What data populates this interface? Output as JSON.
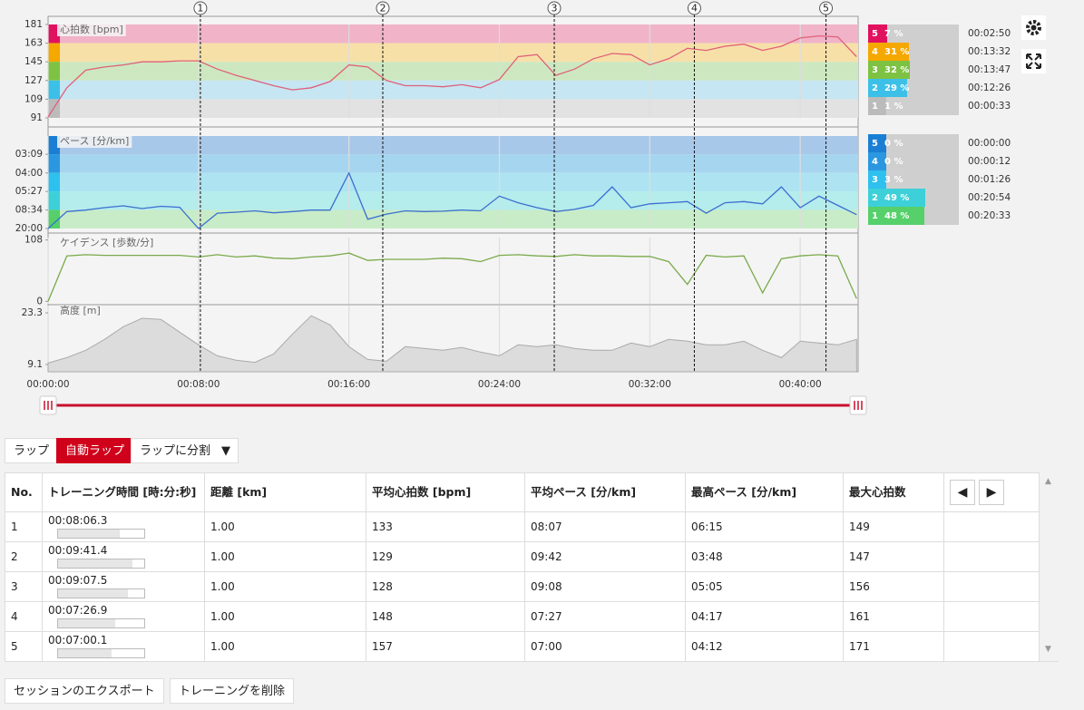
{
  "charts": {
    "minutes": [
      0,
      1,
      2,
      3,
      4,
      5,
      6,
      7,
      8,
      9,
      10,
      11,
      12,
      13,
      14,
      15,
      16,
      17,
      18,
      19,
      20,
      21,
      22,
      23,
      24,
      25,
      26,
      27,
      28,
      29,
      30,
      31,
      32,
      33,
      34,
      35,
      36,
      37,
      38,
      39,
      40,
      41,
      42,
      43
    ],
    "xlim": [
      0,
      43.08
    ],
    "xticks": [
      {
        "value": 0,
        "label": "00:00:00"
      },
      {
        "value": 8,
        "label": "00:08:00"
      },
      {
        "value": 16,
        "label": "00:16:00"
      },
      {
        "value": 24,
        "label": "00:24:00"
      },
      {
        "value": 32,
        "label": "00:32:00"
      },
      {
        "value": 40,
        "label": "00:40:00"
      }
    ],
    "laps": [
      {
        "label": "1",
        "minute": 8.1
      },
      {
        "label": "2",
        "minute": 17.8
      },
      {
        "label": "3",
        "minute": 26.92
      },
      {
        "label": "4",
        "minute": 34.37
      },
      {
        "label": "5",
        "minute": 41.37
      }
    ],
    "heart_rate": {
      "title": "心拍数 [bpm]",
      "color": "#e0607a",
      "ylim": [
        91,
        181
      ],
      "yticks": [
        181,
        163,
        145,
        127,
        109,
        91
      ],
      "zone_colors": [
        "#f0b3c8",
        "#f7e0a8",
        "#cde8c0",
        "#c5e6f2",
        "#e2e2e2"
      ],
      "strip_colors": [
        "#e0115f",
        "#f5a800",
        "#7dc242",
        "#3cc0e8",
        "#bbbbbb"
      ],
      "values": [
        92,
        120,
        137,
        140,
        142,
        145,
        145,
        146,
        146,
        138,
        132,
        127,
        122,
        118,
        120,
        126,
        142,
        140,
        127,
        122,
        122,
        121,
        123,
        120,
        128,
        150,
        152,
        132,
        138,
        148,
        153,
        152,
        142,
        148,
        158,
        156,
        160,
        162,
        156,
        160,
        168,
        170,
        169,
        150
      ]
    },
    "pace": {
      "title": "ペース [分/km]",
      "color": "#3a6fd0",
      "ylim": [
        20,
        2.61
      ],
      "yticks": [
        {
          "value": 3.15,
          "label": "03:09"
        },
        {
          "value": 4,
          "label": "04:00"
        },
        {
          "value": 5.45,
          "label": "05:27"
        },
        {
          "value": 8.567,
          "label": "08:34"
        },
        {
          "value": 20,
          "label": "20:00"
        }
      ],
      "zone_colors": [
        "#a8c8ea",
        "#a6d5ef",
        "#aee4f2",
        "#b5ecec",
        "#c8ecc8"
      ],
      "strip_colors": [
        "#1a7fd4",
        "#2a97e0",
        "#2ec0ee",
        "#3dd0d8",
        "#55d06a"
      ],
      "values": [
        20,
        9.0,
        8.6,
        8.0,
        7.6,
        8.2,
        7.7,
        7.9,
        20,
        9.5,
        9.2,
        8.8,
        9.4,
        9.0,
        8.6,
        8.6,
        4.0,
        12,
        9.8,
        8.8,
        9.0,
        8.9,
        8.6,
        8.8,
        6.0,
        7.0,
        8.0,
        9.0,
        8.4,
        7.5,
        5.0,
        8.0,
        7.2,
        7.0,
        6.8,
        9.5,
        7.0,
        6.8,
        7.2,
        5.0,
        8.0,
        6.0,
        7.5,
        10
      ]
    },
    "cadence": {
      "title": "ケイデンス [歩数/分]",
      "color": "#7aaa4a",
      "ylim": [
        -4.2,
        112.2
      ],
      "yticks": [
        108,
        0
      ],
      "values": [
        0,
        80,
        82,
        81,
        81,
        81,
        81,
        81,
        78,
        82,
        78,
        80,
        76,
        75,
        78,
        80,
        85,
        72,
        74,
        74,
        74,
        76,
        75,
        70,
        81,
        82,
        80,
        79,
        82,
        80,
        80,
        79,
        79,
        70,
        30,
        81,
        78,
        80,
        15,
        75,
        80,
        82,
        80,
        5
      ]
    },
    "altitude": {
      "title": "高度 [m]",
      "color": "#aaaaaa",
      "fill": "#dcdcdc",
      "ylim": [
        7.1,
        25.3
      ],
      "yticks": [
        23.3,
        9.1
      ],
      "values": [
        9.5,
        11,
        13,
        16,
        19.5,
        21.8,
        21.5,
        18,
        14.5,
        11.5,
        10.3,
        9.7,
        12,
        17.5,
        22.5,
        20,
        14,
        10.5,
        10,
        14,
        13.5,
        13,
        13.8,
        12.5,
        11.5,
        14.5,
        14,
        14.5,
        13.5,
        13,
        13,
        15,
        14,
        16,
        15.5,
        14.5,
        14.5,
        15.5,
        13,
        11,
        15.5,
        15,
        14.5,
        16
      ]
    },
    "hr_zones": [
      {
        "zone": "5",
        "value": 7,
        "label": "7 %",
        "time": "00:02:50"
      },
      {
        "zone": "4",
        "value": 31,
        "label": "31 %",
        "time": "00:13:32"
      },
      {
        "zone": "3",
        "value": 32,
        "label": "32 %",
        "time": "00:13:47"
      },
      {
        "zone": "2",
        "value": 29,
        "label": "29 %",
        "time": "00:12:26"
      },
      {
        "zone": "1",
        "value": 1,
        "label": "1 %",
        "time": "00:00:33"
      }
    ],
    "pace_zones": [
      {
        "zone": "5",
        "value": 0,
        "label": "0 %",
        "time": "00:00:00"
      },
      {
        "zone": "4",
        "value": 0,
        "label": "0 %",
        "time": "00:00:12"
      },
      {
        "zone": "3",
        "value": 3,
        "label": "3 %",
        "time": "00:01:26"
      },
      {
        "zone": "2",
        "value": 49,
        "label": "49 %",
        "time": "00:20:54"
      },
      {
        "zone": "1",
        "value": 48,
        "label": "48 %",
        "time": "00:20:33"
      }
    ]
  },
  "tabs": [
    "ラップ",
    "自動ラップ",
    "ラップに分割"
  ],
  "table": {
    "headers": [
      "No.",
      "トレーニング時間 [時:分:秒]",
      "距離 [km]",
      "平均心拍数 [bpm]",
      "平均ペース [分/km]",
      "最高ペース [分/km]",
      "最大心拍数"
    ],
    "rows": [
      [
        "1",
        "00:08:06.3",
        "1.00",
        "133",
        "08:07",
        "06:15",
        "149"
      ],
      [
        "2",
        "00:09:41.4",
        "1.00",
        "129",
        "09:42",
        "03:48",
        "147"
      ],
      [
        "3",
        "00:09:07.5",
        "1.00",
        "128",
        "09:08",
        "05:05",
        "156"
      ],
      [
        "4",
        "00:07:26.9",
        "1.00",
        "148",
        "07:27",
        "04:17",
        "161"
      ],
      [
        "5",
        "00:07:00.1",
        "1.00",
        "157",
        "07:00",
        "04:12",
        "171"
      ]
    ]
  },
  "footer": [
    "セッションのエクスポート",
    "トレーニングを削除"
  ]
}
